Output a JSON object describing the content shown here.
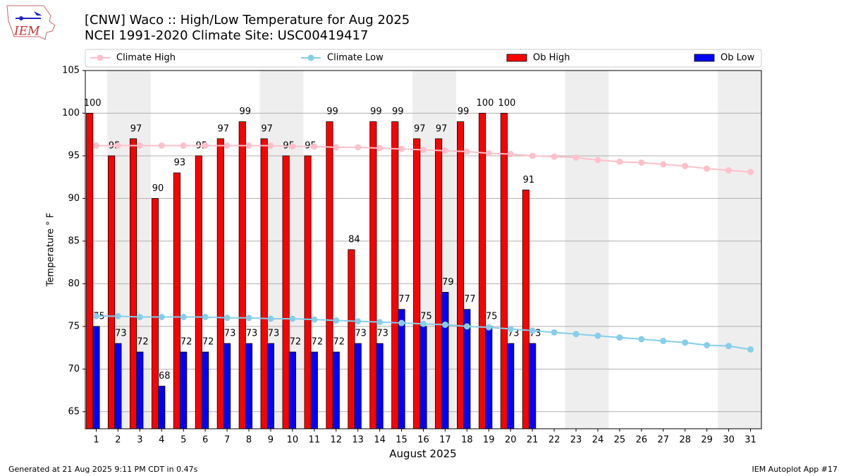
{
  "chart_data": {
    "type": "bar",
    "title": "[CNW] Waco :: High/Low Temperature for Aug 2025",
    "subtitle": "NCEI 1991-2020 Climate Site: USC00419417",
    "x_label": "August 2025",
    "y_label": "Temperature ° F",
    "x": [
      1,
      2,
      3,
      4,
      5,
      6,
      7,
      8,
      9,
      10,
      11,
      12,
      13,
      14,
      15,
      16,
      17,
      18,
      19,
      20,
      21,
      22,
      23,
      24,
      25,
      26,
      27,
      28,
      29,
      30,
      31
    ],
    "xlim": [
      0.5,
      31.5
    ],
    "xticks": [
      1,
      2,
      3,
      4,
      5,
      6,
      7,
      8,
      9,
      10,
      11,
      12,
      13,
      14,
      15,
      16,
      17,
      18,
      19,
      20,
      21,
      22,
      23,
      24,
      25,
      26,
      27,
      28,
      29,
      30,
      31
    ],
    "ylim": [
      63,
      105
    ],
    "yticks": [
      65,
      70,
      75,
      80,
      85,
      90,
      95,
      100,
      105
    ],
    "grid": true,
    "legend": "top",
    "series": [
      {
        "name": "Climate High",
        "type": "line",
        "color": "#ffc0cb",
        "values": [
          96.2,
          96.2,
          96.2,
          96.2,
          96.2,
          96.2,
          96.2,
          96.2,
          96.2,
          96.1,
          96.1,
          96.0,
          96.0,
          95.9,
          95.8,
          95.7,
          95.6,
          95.5,
          95.3,
          95.2,
          95.0,
          94.9,
          94.8,
          94.5,
          94.3,
          94.2,
          94.0,
          93.8,
          93.5,
          93.3,
          93.1
        ]
      },
      {
        "name": "Climate Low",
        "type": "line",
        "color": "#87ceeb",
        "values": [
          76.2,
          76.2,
          76.1,
          76.1,
          76.1,
          76.1,
          76.0,
          76.0,
          75.9,
          75.9,
          75.8,
          75.7,
          75.6,
          75.5,
          75.4,
          75.3,
          75.2,
          75.0,
          74.9,
          74.7,
          74.5,
          74.3,
          74.1,
          73.9,
          73.7,
          73.5,
          73.3,
          73.1,
          72.8,
          72.7,
          72.3
        ]
      },
      {
        "name": "Ob High",
        "type": "bar",
        "color": "#ff0000",
        "values": [
          100,
          95,
          97,
          90,
          93,
          95,
          97,
          99,
          97,
          95,
          95,
          99,
          84,
          99,
          99,
          97,
          97,
          99,
          100,
          100,
          91,
          null,
          null,
          null,
          null,
          null,
          null,
          null,
          null,
          null,
          null
        ]
      },
      {
        "name": "Ob Low",
        "type": "bar",
        "color": "#0000ff",
        "values": [
          75,
          73,
          72,
          68,
          72,
          72,
          73,
          73,
          73,
          72,
          72,
          72,
          73,
          73,
          77,
          75,
          79,
          77,
          75,
          73,
          73,
          null,
          null,
          null,
          null,
          null,
          null,
          null,
          null,
          null,
          null
        ]
      }
    ]
  },
  "logo_text": "IEM",
  "footer_left": "Generated at 21 Aug 2025 9:11 PM CDT in 0.47s",
  "footer_right": "IEM Autoplot App #17"
}
